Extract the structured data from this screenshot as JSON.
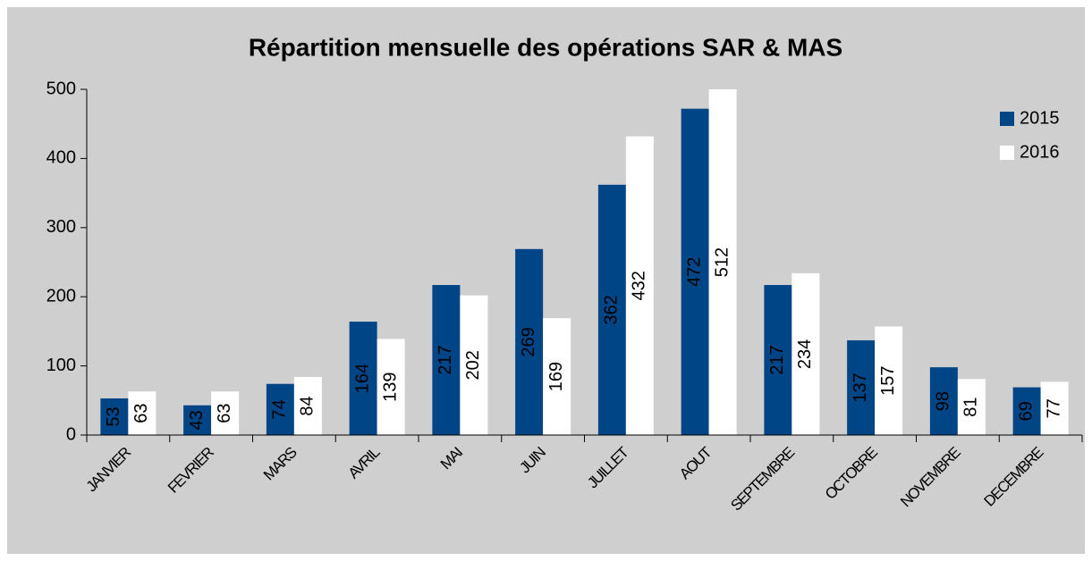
{
  "chart_data": {
    "type": "bar",
    "title": "Répartition mensuelle des opérations SAR & MAS",
    "categories": [
      "JANVIER",
      "FEVRIER",
      "MARS",
      "AVRIL",
      "MAI",
      "JUIN",
      "JUILLET",
      "AOUT",
      "SEPTEMBRE",
      "OCTOBRE",
      "NOVEMBRE",
      "DECEMBRE"
    ],
    "series": [
      {
        "name": "2015",
        "color": "#004586",
        "values": [
          53,
          43,
          74,
          164,
          217,
          269,
          362,
          472,
          217,
          137,
          98,
          69
        ]
      },
      {
        "name": "2016",
        "color": "#ffffff",
        "values": [
          63,
          63,
          84,
          139,
          202,
          169,
          432,
          512,
          234,
          157,
          81,
          77
        ]
      }
    ],
    "ylim": [
      0,
      500
    ],
    "yticks": [
      0,
      100,
      200,
      300,
      400,
      500
    ],
    "legend": "top-right"
  }
}
